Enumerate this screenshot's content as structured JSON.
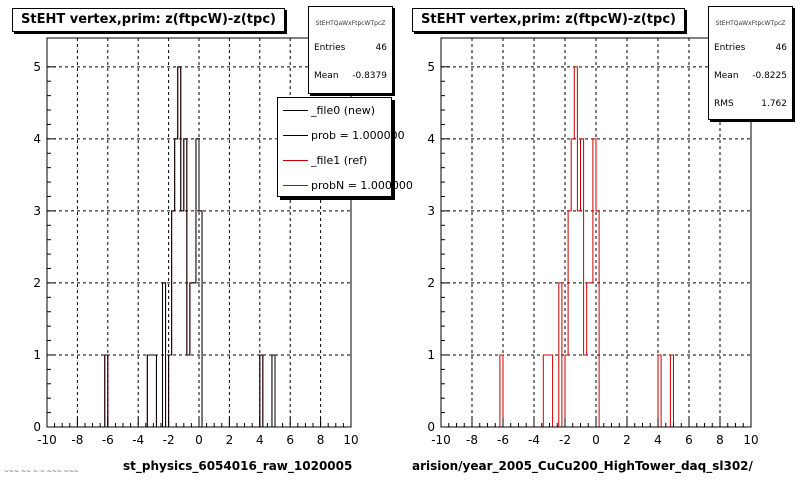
{
  "chart_data": [
    {
      "type": "histogram",
      "title": "StEHT  vertex,prim: z(ftpcW)-z(tpc)",
      "xlim": [
        -10,
        10
      ],
      "ylim": [
        0,
        5.4
      ],
      "x_ticks": [
        "-10",
        "-8",
        "-6",
        "-4",
        "-2",
        "0",
        "2",
        "4",
        "6",
        "8",
        "10"
      ],
      "y_ticks": [
        "0",
        "1",
        "2",
        "3",
        "4",
        "5"
      ],
      "grid": true,
      "bin_edges": [
        -10,
        -9.8,
        -9.6,
        -9.4,
        -9.2,
        -9.0,
        -8.8,
        -8.6,
        -8.4,
        -8.2,
        -8.0,
        -7.8,
        -7.6,
        -7.4,
        -7.2,
        -7.0,
        -6.8,
        -6.6,
        -6.4,
        -6.2,
        -6.0,
        -5.8,
        -5.6,
        -5.4,
        -5.2,
        -5.0,
        -4.8,
        -4.6,
        -4.4,
        -4.2,
        -4.0,
        -3.8,
        -3.6,
        -3.4,
        -3.2,
        -3.0,
        -2.8,
        -2.6,
        -2.4,
        -2.2,
        -2.0,
        -1.8,
        -1.6,
        -1.4,
        -1.2,
        -1.0,
        -0.8,
        -0.6,
        -0.4,
        -0.2,
        0.0,
        0.2,
        0.4,
        0.6,
        0.8,
        1.0,
        1.2,
        1.4,
        1.6,
        1.8,
        2.0,
        2.2,
        2.4,
        2.6,
        2.8,
        3.0,
        3.2,
        3.4,
        3.6,
        3.8,
        4.0,
        4.2,
        4.4,
        4.6,
        4.8,
        5.0,
        5.2,
        5.4,
        5.6,
        5.8,
        6.0,
        6.2,
        6.4,
        6.6,
        6.8,
        7.0,
        7.2,
        7.4,
        7.6,
        7.8,
        8.0,
        8.2,
        8.4,
        8.6,
        8.8,
        9.0,
        9.2,
        9.4,
        9.6,
        9.8,
        10.0
      ],
      "series": [
        {
          "name": "_file0 (new)",
          "color": "#000000",
          "values": [
            0,
            0,
            0,
            0,
            0,
            0,
            0,
            0,
            0,
            0,
            0,
            0,
            0,
            0,
            0,
            0,
            0,
            0,
            0,
            1,
            0,
            0,
            0,
            0,
            0,
            0,
            0,
            0,
            0,
            0,
            0,
            0,
            0,
            1,
            1,
            1,
            0,
            0,
            2,
            0,
            1,
            3,
            4,
            5,
            3,
            4,
            1,
            2,
            2,
            4,
            3,
            0,
            0,
            0,
            0,
            0,
            0,
            0,
            0,
            0,
            0,
            0,
            0,
            0,
            0,
            0,
            0,
            0,
            0,
            0,
            1,
            0,
            0,
            0,
            1,
            0,
            0,
            0,
            0,
            0,
            0,
            0,
            0,
            0,
            0,
            0,
            0,
            0,
            0,
            0,
            0,
            0,
            0,
            0,
            0,
            0,
            0,
            0,
            0,
            0
          ]
        },
        {
          "name": "_file1 (ref)",
          "color": "#cc0000",
          "values": [
            0,
            0,
            0,
            0,
            0,
            0,
            0,
            0,
            0,
            0,
            0,
            0,
            0,
            0,
            0,
            0,
            0,
            0,
            0,
            1,
            0,
            0,
            0,
            0,
            0,
            0,
            0,
            0,
            0,
            0,
            0,
            0,
            0,
            1,
            1,
            1,
            0,
            0,
            2,
            0,
            1,
            3,
            4,
            5,
            3,
            4,
            1,
            2,
            2,
            4,
            3,
            0,
            0,
            0,
            0,
            0,
            0,
            0,
            0,
            0,
            0,
            0,
            0,
            0,
            0,
            0,
            0,
            0,
            0,
            0,
            1,
            0,
            0,
            0,
            1,
            0,
            0,
            0,
            0,
            0,
            0,
            0,
            0,
            0,
            0,
            0,
            0,
            0,
            0,
            0,
            0,
            0,
            0,
            0,
            0,
            0,
            0,
            0,
            0,
            0
          ]
        }
      ]
    },
    {
      "type": "histogram",
      "title": "StEHT  vertex,prim: z(ftpcW)-z(tpc)",
      "xlim": [
        -10,
        10
      ],
      "ylim": [
        0,
        5.4
      ],
      "x_ticks": [
        "-10",
        "-8",
        "-6",
        "-4",
        "-2",
        "0",
        "2",
        "4",
        "6",
        "8",
        "10"
      ],
      "y_ticks": [
        "0",
        "1",
        "2",
        "3",
        "4",
        "5"
      ],
      "grid": true,
      "series": [
        {
          "name": "",
          "color": "#cc0000",
          "values": [
            0,
            0,
            0,
            0,
            0,
            0,
            0,
            0,
            0,
            0,
            0,
            0,
            0,
            0,
            0,
            0,
            0,
            0,
            0,
            1,
            0,
            0,
            0,
            0,
            0,
            0,
            0,
            0,
            0,
            0,
            0,
            0,
            0,
            1,
            1,
            1,
            0,
            0,
            2,
            0,
            1,
            3,
            4,
            5,
            3,
            4,
            1,
            2,
            2,
            4,
            3,
            0,
            0,
            0,
            0,
            0,
            0,
            0,
            0,
            0,
            0,
            0,
            0,
            0,
            0,
            0,
            0,
            0,
            0,
            0,
            1,
            0,
            0,
            0,
            1,
            0,
            0,
            0,
            0,
            0,
            0,
            0,
            0,
            0,
            0,
            0,
            0,
            0,
            0,
            0,
            0,
            0,
            0,
            0,
            0,
            0,
            0,
            0,
            0,
            0
          ]
        }
      ]
    }
  ],
  "left_pad": {
    "stats": {
      "name": "StEHTQaWxFtpcWTpcZ",
      "entries_label": "Entries",
      "entries": "46",
      "mean_label": "Mean",
      "mean": "-0.8379"
    },
    "legend": [
      "_file0 (new)",
      "prob = 1.000000",
      "_file1 (ref)",
      "probN = 1.000000"
    ],
    "legend_colors": [
      "#000000",
      "#000000",
      "#cc0000",
      "#cc0000"
    ],
    "bottom_label": "st_physics_6054016_raw_1020005",
    "tiny_label": "~~~ ~~ ~ ~ ~~~ ~~~"
  },
  "right_pad": {
    "stats": {
      "name": "StEHTQaWxFtpcWTpcZ",
      "entries_label": "Entries",
      "entries": "46",
      "mean_label": "Mean",
      "mean": "-0.8225",
      "rms_label": "RMS",
      "rms": "1.762"
    },
    "bottom_label": "arision/year_2005_CuCu200_HighTower_daq_sl302/"
  }
}
